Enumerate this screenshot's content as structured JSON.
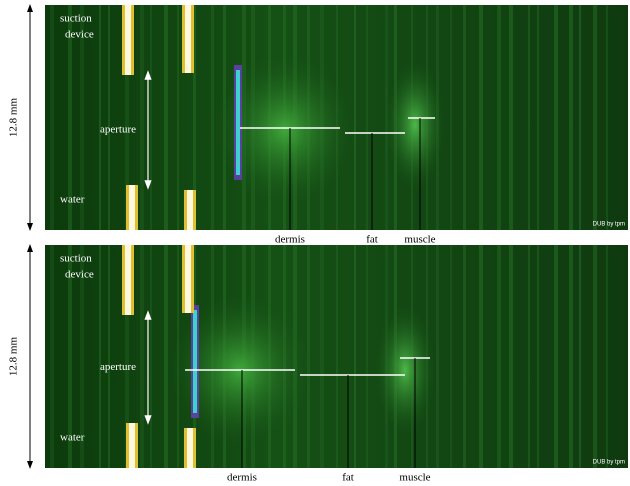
{
  "panels": [
    {
      "scale_label": "12.8 mm",
      "labels": {
        "suction": "suction",
        "device": "device",
        "aperture": "aperture",
        "water": "water",
        "dermis": "dermis",
        "fat": "fat",
        "muscle": "muscle"
      },
      "watermark": "DUB by tpm"
    },
    {
      "scale_label": "12.8 mm",
      "labels": {
        "suction": "suction",
        "device": "device",
        "aperture": "aperture",
        "water": "water",
        "dermis": "dermis",
        "fat": "fat",
        "muscle": "muscle"
      },
      "watermark": "DUB by tpm"
    }
  ]
}
